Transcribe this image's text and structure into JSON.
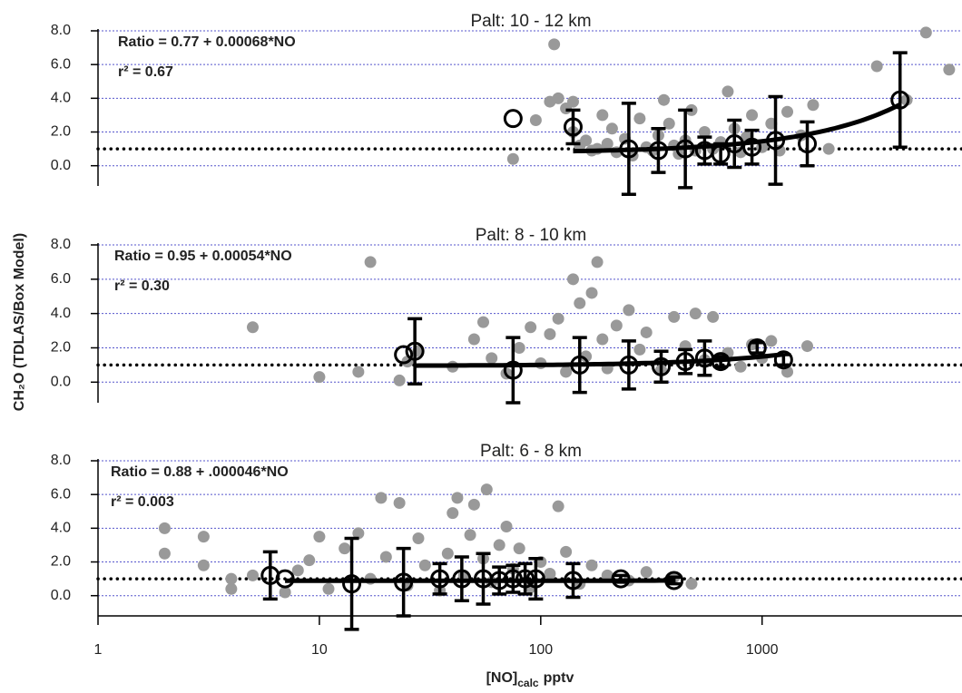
{
  "chart_data": [
    {
      "type": "scatter",
      "title": "Palt: 10 - 12 km",
      "log_x": true,
      "grid": true,
      "xlim": [
        1,
        8000
      ],
      "ylim": [
        -1.2,
        8
      ],
      "yticks": [
        {
          "value": 0,
          "label": "0.0"
        },
        {
          "value": 2,
          "label": "2.0"
        },
        {
          "value": 4,
          "label": "4.0"
        },
        {
          "value": 6,
          "label": "6.0"
        },
        {
          "value": 8,
          "label": "8.0"
        }
      ],
      "annotations": [
        "Ratio = 0.77 + 0.00068*NO",
        "r² = 0.67"
      ],
      "reference_line": 1,
      "fit": {
        "intercept": 0.77,
        "slope": 0.00068,
        "x_range": [
          140,
          4200
        ]
      },
      "points": {
        "color": "#999999",
        "x": [
          75,
          115,
          120,
          110,
          130,
          140,
          150,
          160,
          170,
          180,
          190,
          200,
          210,
          220,
          240,
          260,
          280,
          300,
          320,
          340,
          360,
          380,
          400,
          420,
          450,
          480,
          500,
          550,
          600,
          650,
          700,
          750,
          800,
          850,
          900,
          1000,
          1100,
          1200,
          1300,
          1500,
          1700,
          2000,
          3300,
          4500,
          5500,
          7000,
          95,
          140
        ],
        "values": [
          0.4,
          7.2,
          4.0,
          3.8,
          3.4,
          2.0,
          1.2,
          1.5,
          0.9,
          1.0,
          3.0,
          1.3,
          2.2,
          0.8,
          1.6,
          0.6,
          2.8,
          1.1,
          0.9,
          1.8,
          3.9,
          2.5,
          1.2,
          0.7,
          1.5,
          3.3,
          0.9,
          2.0,
          1.0,
          1.4,
          4.4,
          2.2,
          0.8,
          1.7,
          3.0,
          1.1,
          2.5,
          0.9,
          3.2,
          1.8,
          3.6,
          1.0,
          5.9,
          3.9,
          7.9,
          5.7,
          2.7,
          3.8
        ]
      },
      "means": {
        "color": "#000000",
        "x": [
          75,
          140,
          250,
          340,
          450,
          550,
          650,
          750,
          900,
          1150,
          1600,
          4200
        ],
        "values": [
          2.8,
          2.3,
          1.0,
          0.9,
          1.0,
          0.9,
          0.7,
          1.3,
          1.1,
          1.5,
          1.3,
          3.9
        ],
        "errors": [
          null,
          1.0,
          2.7,
          1.3,
          2.3,
          0.8,
          0.6,
          1.4,
          1.0,
          2.6,
          1.3,
          2.8
        ]
      }
    },
    {
      "type": "scatter",
      "title": "Palt: 8 - 10 km",
      "log_x": true,
      "grid": true,
      "xlim": [
        1,
        8000
      ],
      "ylim": [
        -1.2,
        8
      ],
      "yticks": [
        {
          "value": 0,
          "label": "0.0"
        },
        {
          "value": 2,
          "label": "2.0"
        },
        {
          "value": 4,
          "label": "4.0"
        },
        {
          "value": 6,
          "label": "6.0"
        },
        {
          "value": 8,
          "label": "8.0"
        }
      ],
      "ylabel": "CH₂O (TDLAS/Box Model)",
      "annotations": [
        "Ratio = 0.95 + 0.00054*NO",
        "r² = 0.30"
      ],
      "reference_line": 1,
      "fit": {
        "intercept": 0.95,
        "slope": 0.00054,
        "x_range": [
          27,
          1250
        ]
      },
      "points": {
        "color": "#999999",
        "x": [
          5,
          10,
          15,
          17,
          23,
          25,
          28,
          40,
          50,
          55,
          60,
          70,
          80,
          90,
          100,
          110,
          120,
          130,
          140,
          150,
          160,
          170,
          180,
          190,
          200,
          220,
          250,
          280,
          300,
          350,
          400,
          450,
          500,
          550,
          600,
          700,
          800,
          900,
          1000,
          1100,
          1300,
          1600
        ],
        "values": [
          3.2,
          0.3,
          0.6,
          7.0,
          0.1,
          1.2,
          1.8,
          0.9,
          2.5,
          3.5,
          1.4,
          0.5,
          2.0,
          3.2,
          1.1,
          2.8,
          3.7,
          0.6,
          6.0,
          4.6,
          1.5,
          5.2,
          7.0,
          2.5,
          0.8,
          3.3,
          4.2,
          1.9,
          2.9,
          0.7,
          3.8,
          2.1,
          4.0,
          1.3,
          3.8,
          1.7,
          0.9,
          2.2,
          1.4,
          2.4,
          0.6,
          2.1
        ]
      },
      "means": {
        "color": "#000000",
        "x": [
          24,
          27,
          75,
          150,
          250,
          350,
          450,
          550,
          650,
          950,
          1250
        ],
        "values": [
          1.6,
          1.8,
          0.7,
          1.0,
          1.0,
          0.9,
          1.2,
          1.4,
          1.2,
          2.0,
          1.3
        ],
        "errors": [
          null,
          1.9,
          1.9,
          1.6,
          1.4,
          0.9,
          0.7,
          1.0,
          0.3,
          0.3,
          0.3
        ]
      }
    },
    {
      "type": "scatter",
      "title": "Palt: 6 - 8 km",
      "log_x": true,
      "grid": true,
      "xlim": [
        1,
        8000
      ],
      "ylim": [
        -1.2,
        8
      ],
      "xticks": [
        1,
        10,
        100,
        1000
      ],
      "xlabel": {
        "main": "[NO]",
        "sub": "calc",
        "suffix": "pptv"
      },
      "yticks": [
        {
          "value": 0,
          "label": "0.0"
        },
        {
          "value": 2,
          "label": "2.0"
        },
        {
          "value": 4,
          "label": "4.0"
        },
        {
          "value": 6,
          "label": "6.0"
        },
        {
          "value": 8,
          "label": "8.0"
        }
      ],
      "annotations": [
        "Ratio = 0.88 + .000046*NO",
        "r² = 0.003"
      ],
      "reference_line": 1,
      "fit": {
        "intercept": 0.88,
        "slope": 4.6e-05,
        "x_range": [
          7,
          400
        ]
      },
      "points": {
        "color": "#999999",
        "x": [
          2,
          2,
          3,
          3,
          4,
          4,
          5,
          7,
          8,
          9,
          10,
          11,
          13,
          15,
          17,
          19,
          20,
          23,
          25,
          28,
          30,
          35,
          38,
          40,
          42,
          45,
          48,
          50,
          55,
          57,
          60,
          65,
          70,
          75,
          80,
          90,
          100,
          110,
          120,
          130,
          150,
          170,
          200,
          250,
          300,
          400,
          480
        ],
        "values": [
          4.0,
          2.5,
          3.5,
          1.8,
          0.4,
          1.0,
          1.2,
          0.2,
          1.5,
          2.1,
          3.5,
          0.4,
          2.8,
          3.7,
          1.0,
          5.8,
          2.3,
          5.5,
          0.6,
          3.4,
          1.8,
          0.3,
          2.5,
          4.9,
          5.8,
          1.2,
          3.6,
          5.4,
          2.2,
          6.3,
          0.8,
          3.0,
          4.1,
          1.6,
          2.8,
          0.5,
          2.0,
          1.3,
          5.3,
          2.6,
          0.7,
          1.8,
          1.2,
          0.9,
          1.4,
          1.1,
          0.7
        ]
      },
      "means": {
        "color": "#000000",
        "x": [
          6,
          7,
          14,
          24,
          35,
          44,
          55,
          65,
          75,
          85,
          95,
          140,
          230,
          400
        ],
        "values": [
          1.2,
          1.0,
          0.7,
          0.8,
          1.0,
          1.0,
          1.0,
          0.9,
          1.0,
          1.0,
          1.0,
          0.9,
          1.0,
          0.9
        ],
        "errors": [
          1.4,
          null,
          2.7,
          2.0,
          0.9,
          1.3,
          1.5,
          0.8,
          0.8,
          0.9,
          1.2,
          1.0,
          0.2,
          0.2
        ]
      }
    }
  ]
}
